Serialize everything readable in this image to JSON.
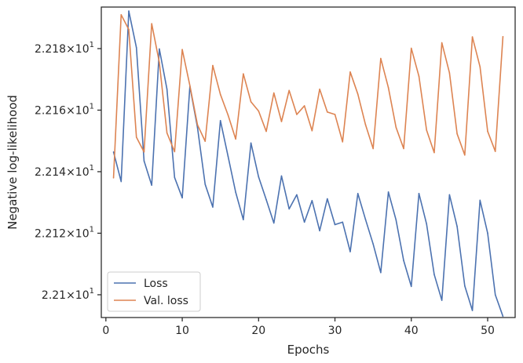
{
  "chart_data": {
    "type": "line",
    "xlabel": "Epochs",
    "ylabel": "Negative log-likelihood",
    "xlim": [
      -0.6,
      53.6
    ],
    "ylim": [
      22.0926,
      22.1935
    ],
    "x_ticks": [
      0,
      10,
      20,
      30,
      40,
      50
    ],
    "x_tick_labels": [
      "0",
      "10",
      "20",
      "30",
      "40",
      "50"
    ],
    "y_ticks": [
      22.1,
      22.12,
      22.14,
      22.16,
      22.18
    ],
    "y_tick_labels": [
      {
        "mantissa": "2.21",
        "exp": "1"
      },
      {
        "mantissa": "2.212",
        "exp": "1"
      },
      {
        "mantissa": "2.214",
        "exp": "1"
      },
      {
        "mantissa": "2.216",
        "exp": "1"
      },
      {
        "mantissa": "2.218",
        "exp": "1"
      }
    ],
    "y_tick_label_times": "×10",
    "legend_position": "lower-left",
    "series": [
      {
        "name": "Loss",
        "color": "#4c72b0",
        "x": [
          1,
          2,
          3,
          4,
          5,
          6,
          7,
          8,
          9,
          10,
          11,
          12,
          13,
          14,
          15,
          16,
          17,
          18,
          19,
          20,
          21,
          22,
          23,
          24,
          25,
          26,
          27,
          28,
          29,
          30,
          31,
          32,
          33,
          34,
          35,
          36,
          37,
          38,
          39,
          40,
          41,
          42,
          43,
          44,
          45,
          46,
          47,
          48,
          49,
          50,
          51,
          52
        ],
        "y": [
          22.1464,
          22.1368,
          22.1922,
          22.1803,
          22.1435,
          22.1356,
          22.1799,
          22.1668,
          22.1381,
          22.1315,
          22.1677,
          22.1543,
          22.1359,
          22.1285,
          22.1566,
          22.145,
          22.1333,
          22.1244,
          22.1493,
          22.1383,
          22.1309,
          22.1233,
          22.1386,
          22.1279,
          22.1325,
          22.1236,
          22.1306,
          22.1208,
          22.1312,
          22.1228,
          22.1236,
          22.114,
          22.1329,
          22.1245,
          22.1165,
          22.1072,
          22.1334,
          22.1243,
          22.1111,
          22.1027,
          22.1329,
          22.123,
          22.1066,
          22.0982,
          22.1325,
          22.1222,
          22.1029,
          22.0949,
          22.1307,
          22.12,
          22.1,
          22.093
        ]
      },
      {
        "name": "Val. loss",
        "color": "#dd8452",
        "x": [
          1,
          2,
          3,
          4,
          5,
          6,
          7,
          8,
          9,
          10,
          11,
          12,
          13,
          14,
          15,
          16,
          17,
          18,
          19,
          20,
          21,
          22,
          23,
          24,
          25,
          26,
          27,
          28,
          29,
          30,
          31,
          32,
          33,
          34,
          35,
          36,
          37,
          38,
          39,
          40,
          41,
          42,
          43,
          44,
          45,
          46,
          47,
          48,
          49,
          50,
          51,
          52
        ],
        "y": [
          22.138,
          22.191,
          22.1862,
          22.1512,
          22.1464,
          22.1881,
          22.1755,
          22.1526,
          22.1465,
          22.1797,
          22.168,
          22.1552,
          22.1499,
          22.1745,
          22.1651,
          22.1584,
          22.1506,
          22.1718,
          22.1627,
          22.1597,
          22.1531,
          22.1656,
          22.1563,
          22.1664,
          22.1586,
          22.1614,
          22.1533,
          22.1668,
          22.1594,
          22.1586,
          22.1497,
          22.1724,
          22.1652,
          22.1553,
          22.1475,
          22.1768,
          22.1673,
          22.1544,
          22.1475,
          22.1801,
          22.171,
          22.1535,
          22.1462,
          22.1819,
          22.1721,
          22.1523,
          22.1454,
          22.1838,
          22.1741,
          22.1531,
          22.1466,
          22.1839
        ]
      }
    ]
  }
}
